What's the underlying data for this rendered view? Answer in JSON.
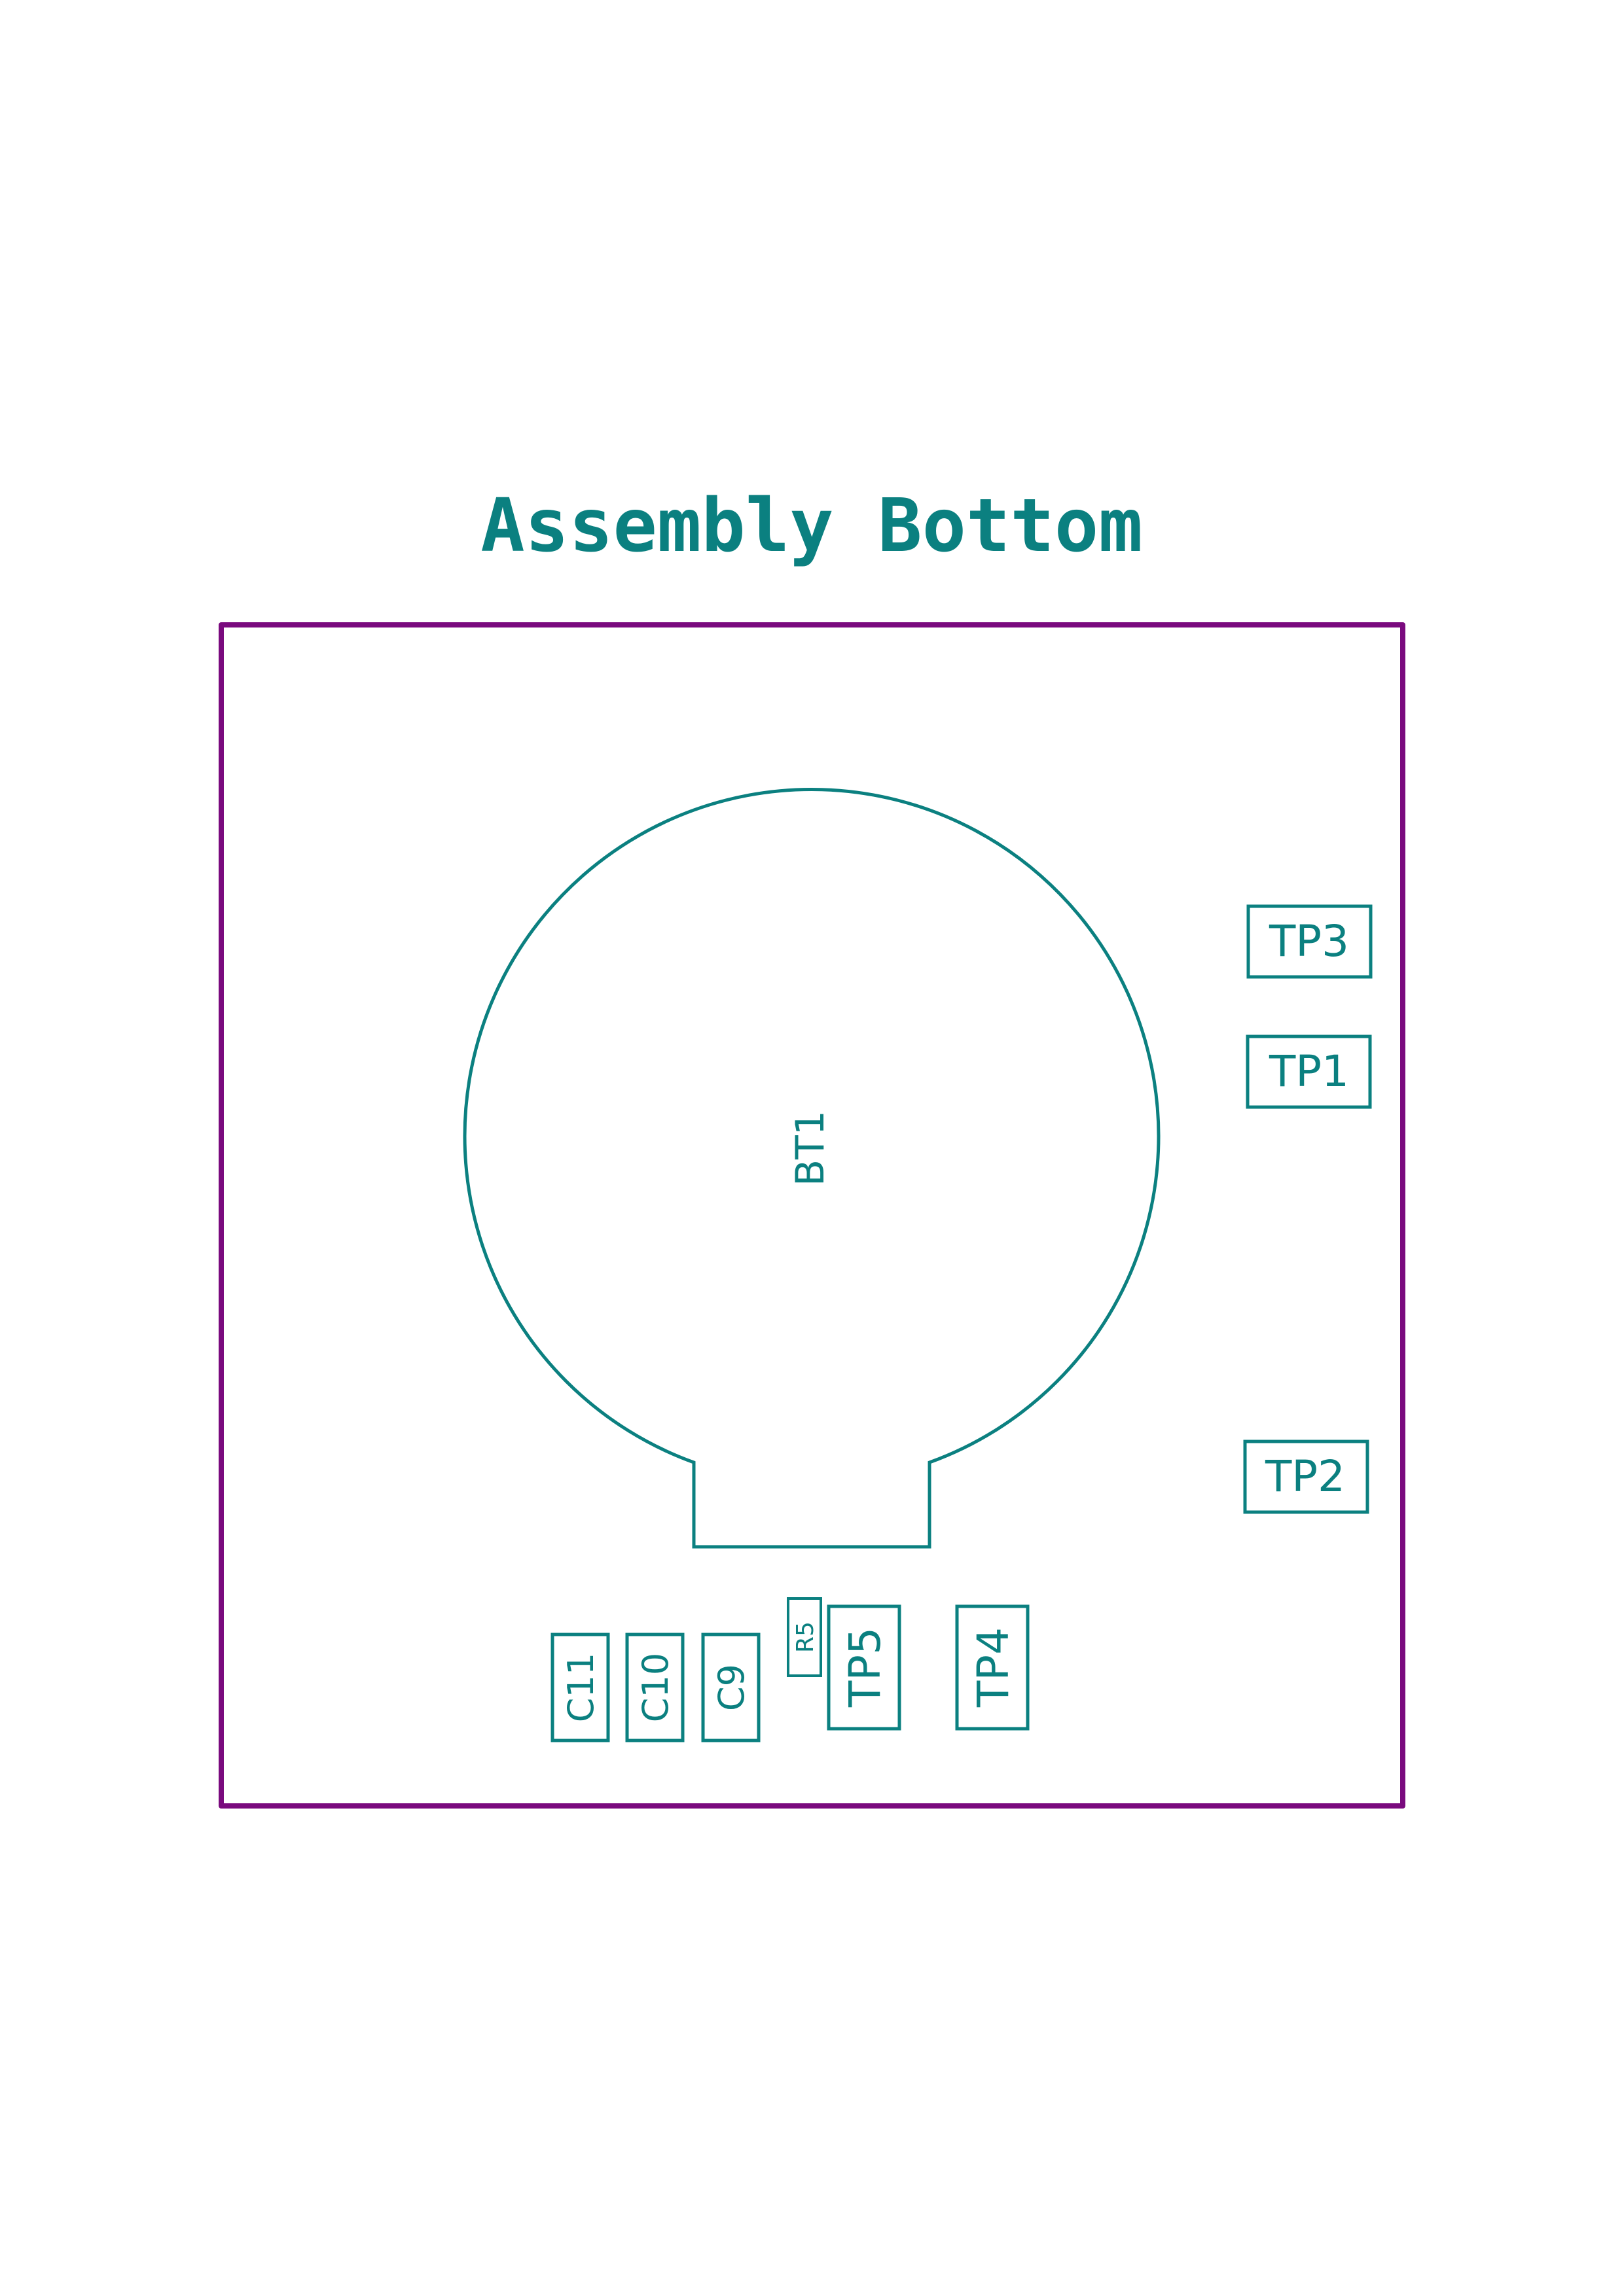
{
  "title": "Assembly Bottom",
  "colors": {
    "outline": "#7a0a7e",
    "silk": "#0b8080",
    "background": "#ffffff"
  },
  "components": {
    "bt1": "BT1",
    "tp1": "TP1",
    "tp2": "TP2",
    "tp3": "TP3",
    "tp4": "TP4",
    "tp5": "TP5",
    "r5": "R5",
    "c9": "C9",
    "c10": "C10",
    "c11": "C11"
  }
}
